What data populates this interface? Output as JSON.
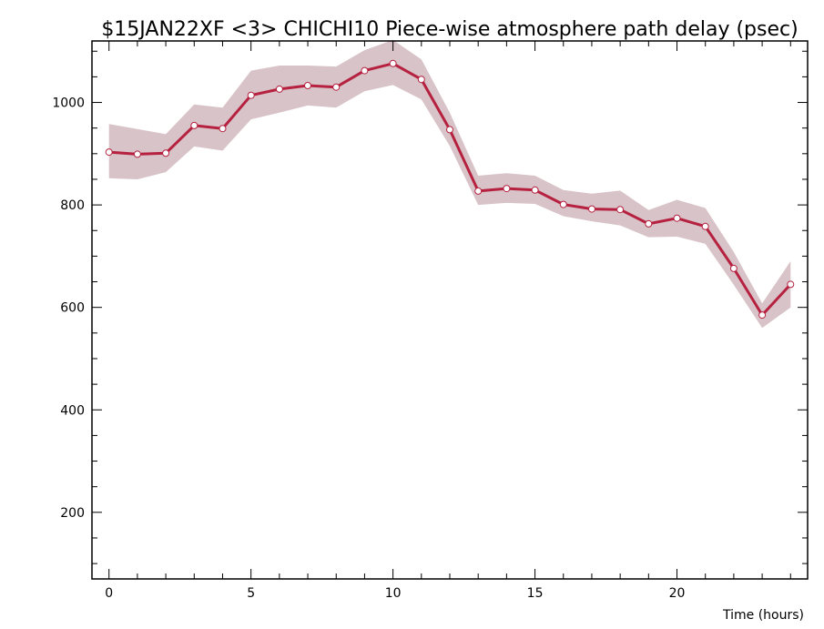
{
  "chart_data": {
    "type": "line",
    "title": "$15JAN22XF <3>  CHICHI10  Piece-wise atmosphere path delay (psec)",
    "xlabel": "Time (hours)",
    "ylabel": "",
    "xlim": [
      -0.6,
      24.6
    ],
    "ylim": [
      70,
      1120
    ],
    "x_ticks": [
      0,
      5,
      10,
      15,
      20
    ],
    "y_ticks": [
      200,
      400,
      600,
      800,
      1000
    ],
    "grid": false,
    "legend": "none",
    "series": [
      {
        "x": [
          0,
          1,
          2,
          3,
          4,
          5,
          6,
          7,
          8,
          9,
          10,
          11,
          12,
          13,
          14,
          15,
          16,
          17,
          18,
          19,
          20,
          21,
          22,
          23,
          24
        ],
        "values": [
          903,
          899,
          901,
          955,
          949,
          1014,
          1026,
          1033,
          1030,
          1062,
          1076,
          1045,
          947,
          827,
          832,
          829,
          801,
          792,
          791,
          763,
          774,
          758,
          676,
          585,
          645
        ],
        "upper": [
          958,
          948,
          938,
          996,
          990,
          1062,
          1072,
          1072,
          1070,
          1102,
          1122,
          1084,
          980,
          857,
          862,
          857,
          829,
          822,
          828,
          790,
          810,
          794,
          708,
          608,
          690
        ],
        "lower": [
          852,
          850,
          864,
          914,
          906,
          967,
          980,
          994,
          990,
          1022,
          1034,
          1006,
          915,
          800,
          804,
          802,
          778,
          768,
          760,
          737,
          738,
          724,
          644,
          560,
          600
        ]
      }
    ],
    "colors": {
      "line": "#b5213f",
      "band": "#d8c3c8",
      "marker_fill": "#ffffff",
      "axis": "#000000"
    }
  }
}
